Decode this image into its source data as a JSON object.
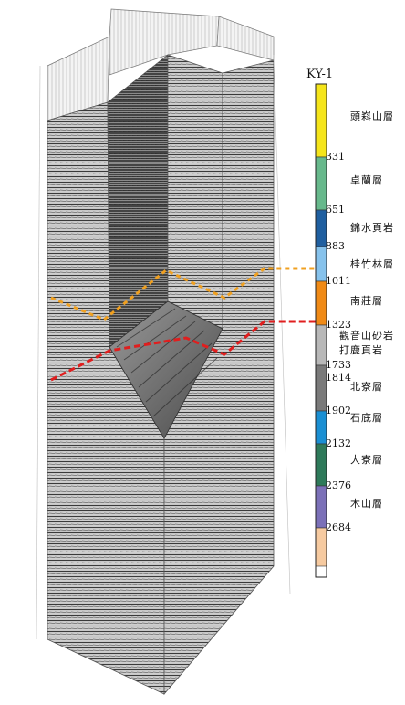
{
  "well": {
    "name": "KY-1",
    "boundary_depths": [
      "331",
      "651",
      "883",
      "1011",
      "1323",
      "1733",
      "1814",
      "1902",
      "2132",
      "2376",
      "2684"
    ],
    "formations": [
      {
        "name": "頭嵙山層",
        "color": "#f5e51a"
      },
      {
        "name": "卓蘭層",
        "color": "#67b98c"
      },
      {
        "name": "錦水頁岩",
        "color": "#1f5fa0"
      },
      {
        "name": "桂竹林層",
        "color": "#86c2ec"
      },
      {
        "name": "南莊層",
        "color": "#f08a16"
      },
      {
        "name": "觀音山砂岩",
        "color": "#b8b8b8"
      },
      {
        "name": "打鹿頁岩",
        "color": "#7a7a7a"
      },
      {
        "name": "北寮層",
        "color": "#1a8fd3"
      },
      {
        "name": "石底層",
        "color": "#2e7a5a"
      },
      {
        "name": "大寮層",
        "color": "#7b70b8"
      },
      {
        "name": "木山層",
        "color": "#f6caa0"
      }
    ]
  },
  "horizons": [
    {
      "name": "orange-horizon",
      "color": "#f0a020"
    },
    {
      "name": "red-horizon",
      "color": "#e01e1e"
    }
  ],
  "colors": {
    "seismic_light": "#e6e6e6",
    "seismic_dark": "#2a2a2a"
  }
}
